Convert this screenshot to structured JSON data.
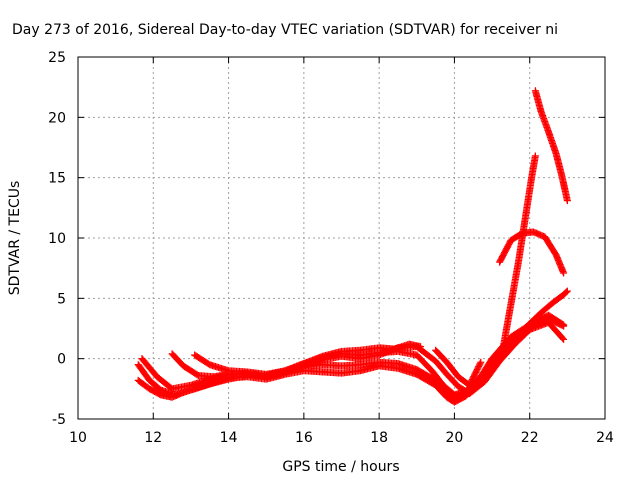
{
  "chart_data": {
    "type": "scatter",
    "title": "Day 273 of 2016, Sidereal Day-to-day VTEC variation (SDTVAR) for receiver ni",
    "xlabel": "GPS time / hours",
    "ylabel": "SDTVAR / TECUs",
    "xlim": [
      10,
      24
    ],
    "ylim": [
      -5,
      25
    ],
    "xticks": [
      "10",
      "12",
      "14",
      "16",
      "18",
      "20",
      "22",
      "24"
    ],
    "yticks": [
      "-5",
      "0",
      "5",
      "10",
      "15",
      "20",
      "25"
    ],
    "grid": true,
    "legend": "none",
    "marker": "+",
    "colors": {
      "series": "#ff0000",
      "grid": "#a0a0a0",
      "axis": "#000000"
    },
    "series": [
      {
        "x": [
          11.6,
          11.9,
          12.2,
          12.5,
          12.8,
          13.2,
          13.6,
          14.0,
          14.5,
          15.0,
          15.5,
          16.0,
          16.5,
          17.0,
          17.5,
          18.0,
          18.5,
          19.0,
          19.5,
          19.8,
          20.0,
          20.3,
          20.6,
          21.0,
          21.5,
          21.9
        ],
        "y": [
          -1.8,
          -2.5,
          -3.0,
          -3.2,
          -2.8,
          -2.4,
          -2.0,
          -1.6,
          -1.5,
          -1.7,
          -1.3,
          -1.0,
          -1.1,
          -1.2,
          -1.0,
          -0.6,
          -0.8,
          -1.3,
          -2.2,
          -3.2,
          -3.6,
          -3.1,
          -2.2,
          -0.5,
          1.5,
          2.3
        ]
      },
      {
        "x": [
          11.6,
          11.9,
          12.2,
          12.6,
          13.0,
          13.5,
          14.0,
          14.5,
          15.0,
          15.5,
          16.0,
          16.5,
          17.0,
          17.5,
          18.0,
          18.5,
          19.0,
          19.5,
          19.8,
          20.0,
          20.3,
          20.7,
          21.0,
          21.5,
          22.0,
          22.5,
          22.9
        ],
        "y": [
          -0.5,
          -1.8,
          -2.6,
          -3.0,
          -2.6,
          -2.1,
          -1.7,
          -1.4,
          -1.5,
          -1.1,
          -0.7,
          -0.5,
          -0.6,
          -0.5,
          -0.3,
          -0.4,
          -0.9,
          -1.8,
          -2.6,
          -3.3,
          -2.9,
          -1.8,
          -0.4,
          1.4,
          2.6,
          3.3,
          2.7
        ]
      },
      {
        "x": [
          11.7,
          12.1,
          12.5,
          13.0,
          13.5,
          14.0,
          14.5,
          15.0,
          15.5,
          16.0,
          16.5,
          17.0,
          17.5,
          18.0,
          18.5,
          19.0,
          19.4,
          19.7,
          20.0,
          20.3,
          20.7,
          21.0,
          21.5,
          22.0,
          22.5,
          22.9
        ],
        "y": [
          0.0,
          -1.5,
          -2.5,
          -2.2,
          -1.7,
          -1.3,
          -1.2,
          -1.4,
          -1.0,
          -0.4,
          0.1,
          0.4,
          0.3,
          0.5,
          0.6,
          0.3,
          -1.0,
          -2.2,
          -3.0,
          -2.7,
          -1.5,
          0.0,
          1.8,
          2.8,
          3.6,
          2.8
        ]
      },
      {
        "x": [
          12.5,
          12.8,
          13.2,
          13.6,
          14.0,
          14.5,
          15.0,
          15.5,
          16.0,
          16.5,
          17.0,
          17.5,
          18.0,
          18.5,
          19.0,
          19.5,
          19.8,
          20.1,
          20.4,
          20.8,
          21.2,
          21.6,
          22.0,
          22.5,
          22.9
        ],
        "y": [
          0.4,
          -0.6,
          -1.4,
          -1.5,
          -1.3,
          -1.2,
          -1.5,
          -1.2,
          -0.6,
          -0.1,
          0.2,
          0.0,
          0.3,
          0.9,
          1.0,
          -0.2,
          -1.3,
          -2.3,
          -2.9,
          -1.9,
          -0.2,
          1.2,
          2.4,
          3.0,
          1.6
        ]
      },
      {
        "x": [
          13.1,
          13.5,
          14.0,
          14.5,
          15.0,
          15.5,
          16.0,
          16.5,
          17.0,
          17.5,
          18.0,
          18.4,
          18.8,
          19.1
        ],
        "y": [
          0.3,
          -0.5,
          -1.0,
          -1.1,
          -1.3,
          -1.0,
          -0.4,
          0.2,
          0.6,
          0.7,
          0.9,
          0.8,
          1.2,
          1.0
        ]
      },
      {
        "x": [
          19.5,
          19.8,
          20.1,
          20.4,
          20.7
        ],
        "y": [
          0.7,
          -0.3,
          -1.5,
          -2.2,
          -0.3
        ]
      },
      {
        "x": [
          21.2,
          21.5,
          21.8,
          22.1,
          22.4,
          22.7,
          22.9
        ],
        "y": [
          8.0,
          9.8,
          10.4,
          10.5,
          10.1,
          8.6,
          7.1
        ]
      },
      {
        "x": [
          21.3,
          21.5,
          21.7,
          21.9,
          22.05,
          22.15
        ],
        "y": [
          1.0,
          4.5,
          8.0,
          12.0,
          15.0,
          16.8
        ]
      },
      {
        "x": [
          22.15,
          22.3,
          22.5,
          22.7,
          22.85,
          23.0
        ],
        "y": [
          22.2,
          20.5,
          18.8,
          17.0,
          15.2,
          13.1
        ]
      },
      {
        "x": [
          21.4,
          21.7,
          22.0,
          22.3,
          22.6,
          22.9,
          23.0
        ],
        "y": [
          1.0,
          2.0,
          2.9,
          3.8,
          4.6,
          5.3,
          5.6
        ]
      }
    ]
  }
}
